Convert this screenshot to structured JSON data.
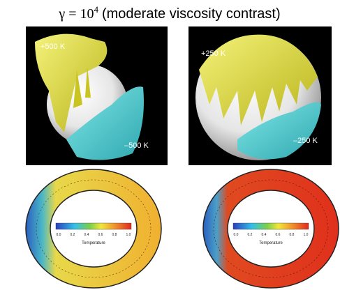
{
  "figure": {
    "title": {
      "symbol": "γ = 10",
      "exponent": "4",
      "text": "(moderate viscosity contrast)"
    },
    "top_panels": [
      {
        "hot_label": "+500 K",
        "cold_label": "–500 K"
      },
      {
        "hot_label": "+250 K",
        "cold_label": "–250 K"
      }
    ],
    "bottom_panels": [
      {
        "colorbar_ticks": [
          "0.0",
          "0.2",
          "0.4",
          "0.6",
          "0.8",
          "1.0"
        ],
        "colorbar_label": "Temperature"
      },
      {
        "colorbar_ticks": [
          "0.0",
          "0.2",
          "0.4",
          "0.6",
          "0.8",
          "1.0"
        ],
        "colorbar_label": "Temperature"
      }
    ]
  }
}
